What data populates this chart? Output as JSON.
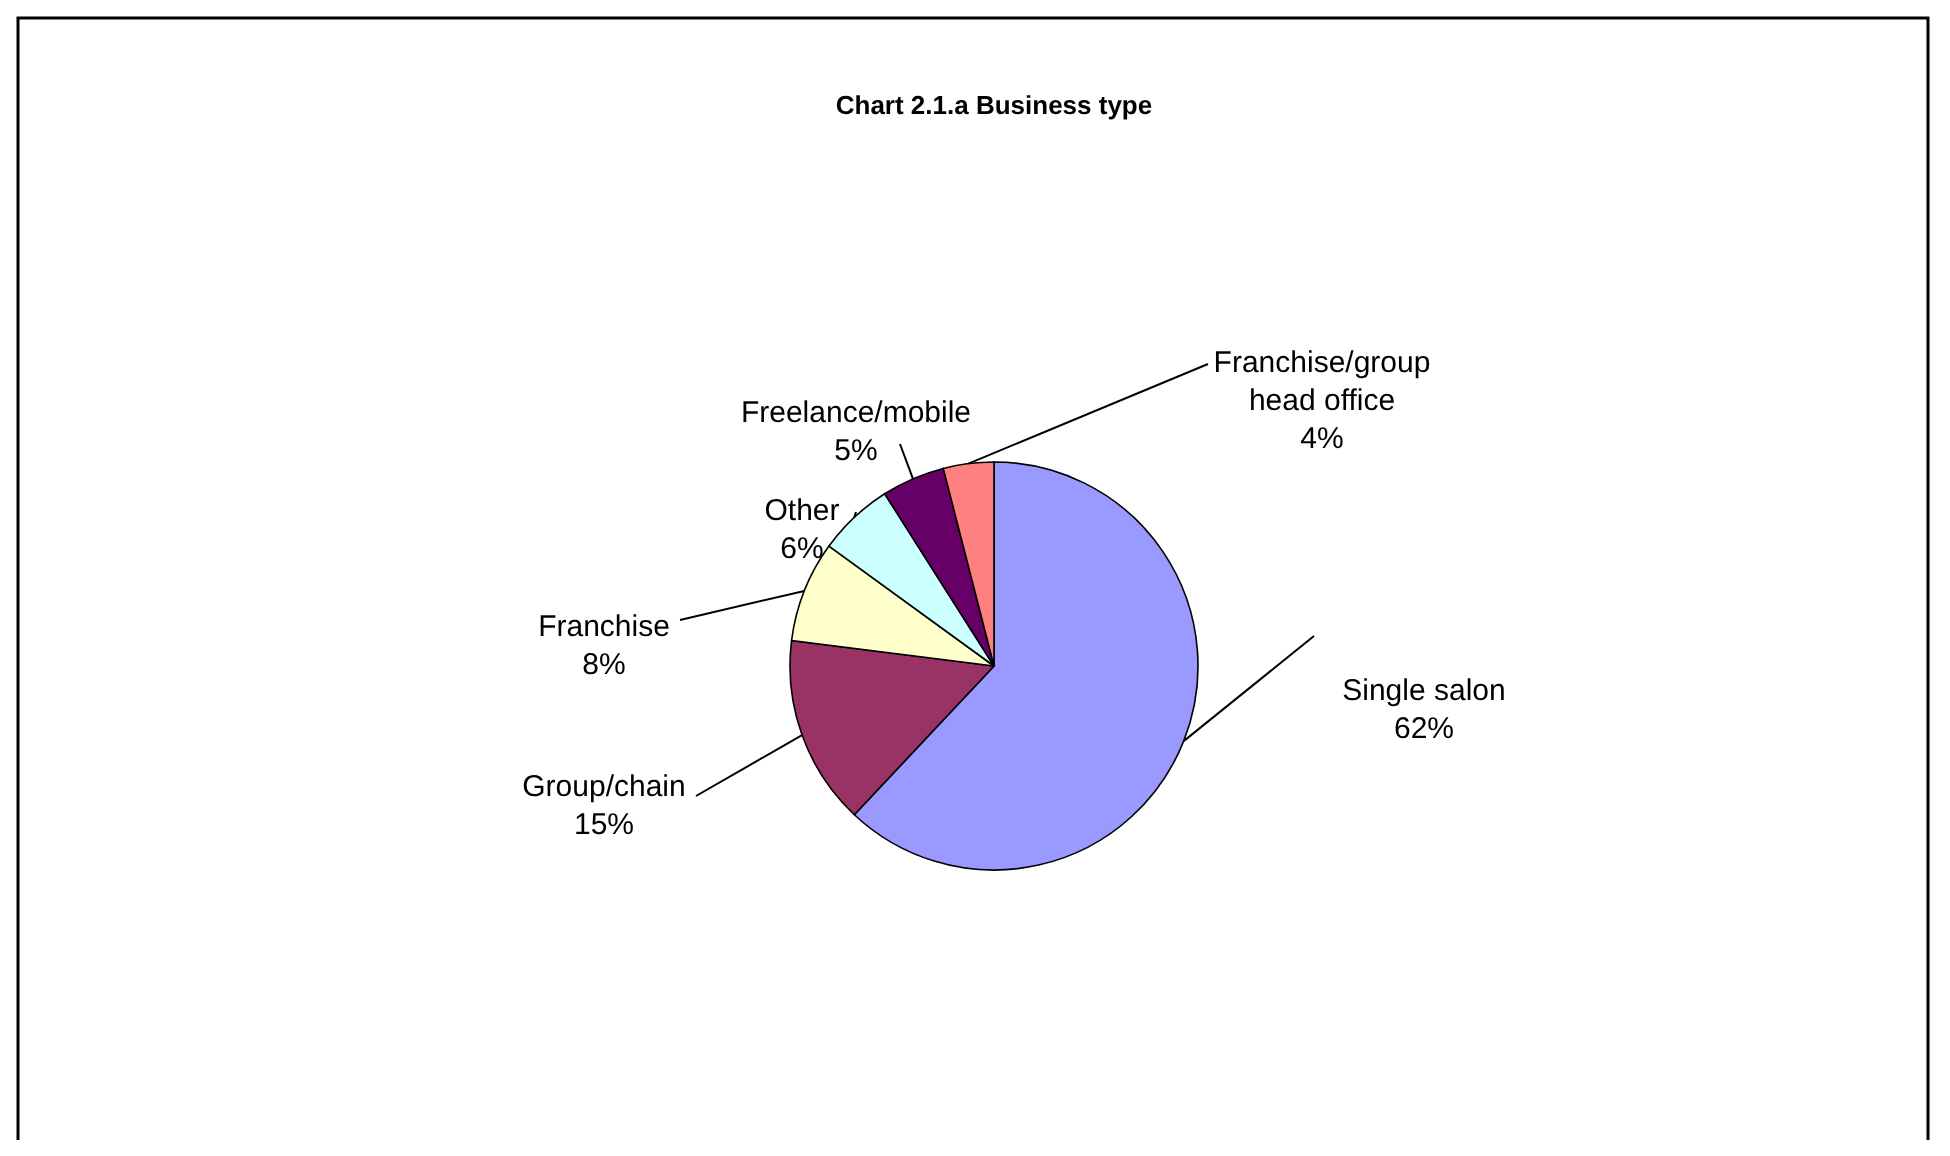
{
  "chart_data": {
    "type": "pie",
    "title": "Chart 2.1.a Business type",
    "categories": [
      "Single salon",
      "Group/chain",
      "Franchise",
      "Other",
      "Freelance/mobile",
      "Franchise/group head office"
    ],
    "values": [
      62,
      15,
      8,
      6,
      5,
      4
    ],
    "colors": [
      "#9999ff",
      "#993366",
      "#ffffcc",
      "#ccffff",
      "#660066",
      "#ff8080"
    ],
    "value_labels": [
      "62%",
      "15%",
      "8%",
      "6%",
      "5%",
      "4%"
    ]
  }
}
